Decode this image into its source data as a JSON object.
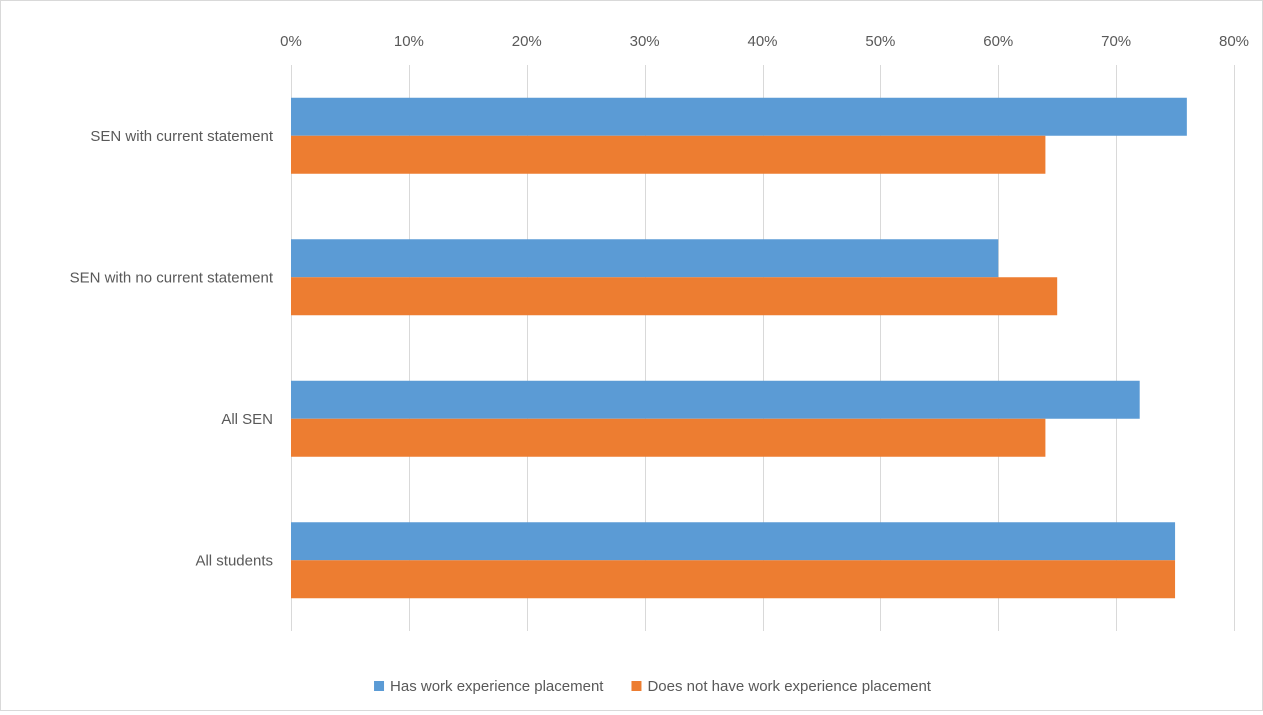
{
  "chart_data": {
    "type": "bar",
    "orientation": "horizontal",
    "title": "",
    "xlabel": "",
    "ylabel": "",
    "categories": [
      "SEN with current statement",
      "SEN with no current statement",
      "All SEN",
      "All students"
    ],
    "series": [
      {
        "name": "Has work experience placement",
        "color": "#5b9bd5",
        "values": [
          0.76,
          0.6,
          0.72,
          0.75
        ]
      },
      {
        "name": "Does not have work experience placement",
        "color": "#ed7d31",
        "values": [
          0.64,
          0.65,
          0.64,
          0.75
        ]
      }
    ],
    "xlim": [
      0,
      0.8
    ],
    "xticks": [
      0,
      0.1,
      0.2,
      0.3,
      0.4,
      0.5,
      0.6,
      0.7,
      0.8
    ],
    "xtick_labels": [
      "0%",
      "10%",
      "20%",
      "30%",
      "40%",
      "50%",
      "60%",
      "70%",
      "80%"
    ],
    "x_axis_position": "top",
    "grid": true,
    "legend_position": "bottom"
  }
}
